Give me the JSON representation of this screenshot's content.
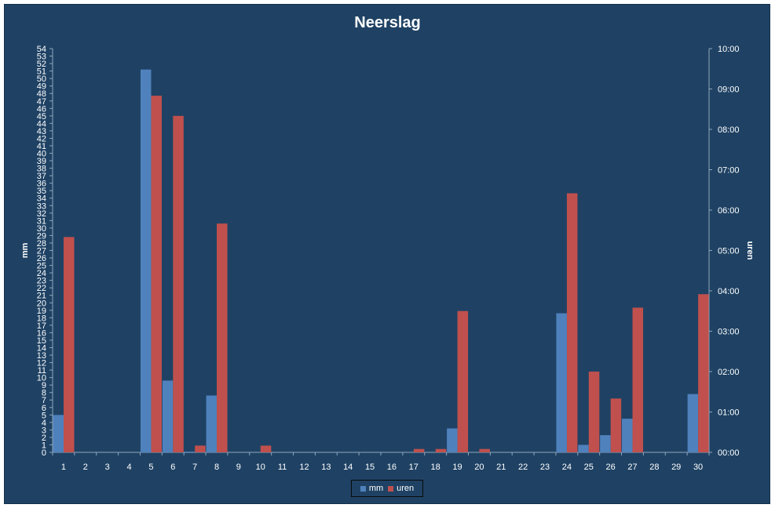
{
  "chart_data": {
    "type": "bar",
    "title": "Neerslag",
    "xlabel": "",
    "ylabel": "mm",
    "y2label": "uren",
    "categories": [
      "1",
      "2",
      "3",
      "4",
      "5",
      "6",
      "7",
      "8",
      "9",
      "10",
      "11",
      "12",
      "13",
      "14",
      "15",
      "16",
      "17",
      "18",
      "19",
      "20",
      "21",
      "22",
      "23",
      "24",
      "25",
      "26",
      "27",
      "28",
      "29",
      "30"
    ],
    "ylim": [
      0,
      54
    ],
    "y2lim_minutes": [
      0,
      600
    ],
    "y2_ticks": [
      "00:00",
      "01:00",
      "02:00",
      "03:00",
      "04:00",
      "05:00",
      "06:00",
      "07:00",
      "08:00",
      "09:00",
      "10:00"
    ],
    "series": [
      {
        "name": "mm",
        "axis": "left",
        "color": "#4f81bd",
        "values": [
          5,
          0,
          0,
          0,
          51.2,
          9.6,
          0.1,
          7.6,
          0,
          0,
          0,
          0,
          0,
          0,
          0,
          0,
          0,
          0,
          3.2,
          0,
          0,
          0,
          0,
          18.6,
          1,
          2.3,
          4.5,
          0,
          0,
          7.8
        ]
      },
      {
        "name": "uren",
        "axis": "right",
        "color": "#c0504d",
        "minutes": [
          320,
          0,
          0,
          0,
          530,
          500,
          10,
          340,
          0,
          10,
          0,
          0,
          0,
          0,
          0,
          0,
          5,
          5,
          210,
          5,
          0,
          0,
          0,
          385,
          120,
          80,
          215,
          0,
          0,
          235
        ]
      }
    ],
    "grid": false,
    "legend_position": "bottom"
  }
}
